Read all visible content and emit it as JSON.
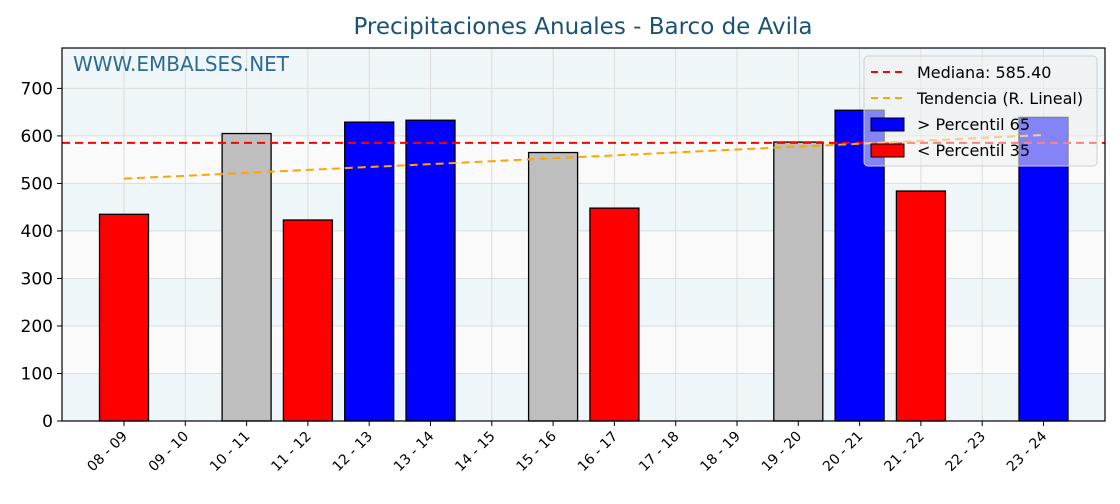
{
  "chart_data": {
    "type": "bar",
    "title": "Precipitaciones Anuales - Barco de Avila",
    "watermark": "WWW.EMBALSES.NET",
    "xlabel": "",
    "ylabel": "",
    "ylim": [
      0,
      785
    ],
    "yticks": [
      0,
      100,
      200,
      300,
      400,
      500,
      600,
      700
    ],
    "grid": true,
    "legend_position": "upper right",
    "categories": [
      "08 - 09",
      "09 - 10",
      "10 - 11",
      "11 - 12",
      "12 - 13",
      "13 - 14",
      "14 - 15",
      "15 - 16",
      "16 - 17",
      "17 - 18",
      "18 - 19",
      "19 - 20",
      "20 - 21",
      "21 - 22",
      "22 - 23",
      "23 - 24"
    ],
    "values": [
      435,
      null,
      605,
      423,
      629,
      633,
      null,
      565,
      448,
      null,
      null,
      587,
      654,
      484,
      null,
      639
    ],
    "bar_classes": [
      "low",
      null,
      "mid",
      "low",
      "high",
      "high",
      null,
      "mid",
      "low",
      null,
      null,
      "mid",
      "high",
      "low",
      null,
      "high"
    ],
    "colors": {
      "high": "#0000ff",
      "low": "#ff0000",
      "mid": "#bebebe",
      "median": "#ff0000",
      "trend": "#ffa500",
      "title": "#1a5276",
      "watermark": "#2e6b94"
    },
    "median": 585.4,
    "trend": {
      "start": 510,
      "end": 602
    },
    "legend": [
      {
        "label": "Mediana: 585.40",
        "type": "line",
        "color": "#ff0000"
      },
      {
        "label": "Tendencia (R. Lineal)",
        "type": "line",
        "color": "#ffa500"
      },
      {
        "label": " > Percentil 65",
        "type": "box",
        "color": "#0000ff"
      },
      {
        "label": " < Percentil 35",
        "type": "box",
        "color": "#ff0000"
      }
    ]
  }
}
